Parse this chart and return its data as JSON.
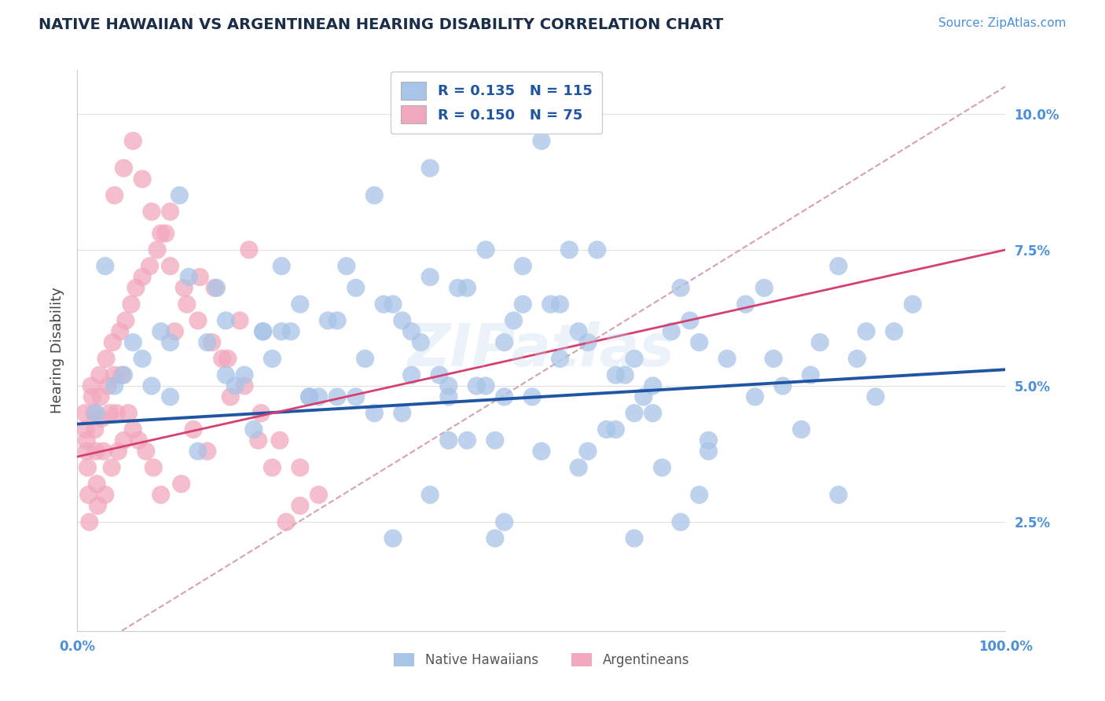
{
  "title": "NATIVE HAWAIIAN VS ARGENTINEAN HEARING DISABILITY CORRELATION CHART",
  "source": "Source: ZipAtlas.com",
  "ylabel": "Hearing Disability",
  "ytick_labels": [
    "2.5%",
    "5.0%",
    "7.5%",
    "10.0%"
  ],
  "ytick_values": [
    0.025,
    0.05,
    0.075,
    0.1
  ],
  "xlim": [
    0.0,
    1.0
  ],
  "ylim": [
    0.005,
    0.108
  ],
  "legend_R_blue": "0.135",
  "legend_N_blue": "115",
  "legend_R_pink": "0.150",
  "legend_N_pink": "75",
  "legend_label_blue": "Native Hawaiians",
  "legend_label_pink": "Argentineans",
  "watermark": "ZIPatlas",
  "blue_dot_color": "#a8c4e8",
  "pink_dot_color": "#f2a8bc",
  "blue_line_color": "#2055a4",
  "pink_line_color": "#d64070",
  "dashed_line_color": "#d8a0b0",
  "title_color": "#1a2e4a",
  "source_color": "#4a90d9",
  "axis_color": "#4a90d9",
  "legend_text_color": "#2055a4",
  "blue_scatter_x": [
    0.02,
    0.05,
    0.07,
    0.09,
    0.1,
    0.12,
    0.14,
    0.16,
    0.18,
    0.2,
    0.22,
    0.24,
    0.26,
    0.28,
    0.3,
    0.32,
    0.34,
    0.36,
    0.38,
    0.4,
    0.42,
    0.44,
    0.46,
    0.48,
    0.5,
    0.52,
    0.54,
    0.56,
    0.58,
    0.6,
    0.62,
    0.64,
    0.66,
    0.68,
    0.7,
    0.72,
    0.74,
    0.76,
    0.78,
    0.8,
    0.82,
    0.84,
    0.86,
    0.88,
    0.9,
    0.03,
    0.06,
    0.08,
    0.11,
    0.13,
    0.15,
    0.17,
    0.19,
    0.21,
    0.23,
    0.25,
    0.27,
    0.29,
    0.31,
    0.33,
    0.35,
    0.37,
    0.39,
    0.41,
    0.43,
    0.45,
    0.47,
    0.49,
    0.51,
    0.53,
    0.55,
    0.57,
    0.59,
    0.61,
    0.63,
    0.65,
    0.67,
    0.04,
    0.1,
    0.16,
    0.22,
    0.28,
    0.34,
    0.4,
    0.46,
    0.52,
    0.58,
    0.38,
    0.44,
    0.32,
    0.5,
    0.36,
    0.42,
    0.54,
    0.6,
    0.46,
    0.38,
    0.62,
    0.67,
    0.73,
    0.79,
    0.85,
    0.3,
    0.45,
    0.55,
    0.65,
    0.75,
    0.25,
    0.35,
    0.48,
    0.68,
    0.82,
    0.2,
    0.4,
    0.6
  ],
  "blue_scatter_y": [
    0.045,
    0.052,
    0.055,
    0.06,
    0.058,
    0.07,
    0.058,
    0.062,
    0.052,
    0.06,
    0.072,
    0.065,
    0.048,
    0.062,
    0.068,
    0.045,
    0.065,
    0.052,
    0.07,
    0.04,
    0.068,
    0.05,
    0.048,
    0.072,
    0.038,
    0.055,
    0.06,
    0.075,
    0.052,
    0.045,
    0.045,
    0.06,
    0.062,
    0.04,
    0.055,
    0.065,
    0.068,
    0.05,
    0.042,
    0.058,
    0.03,
    0.055,
    0.048,
    0.06,
    0.065,
    0.072,
    0.058,
    0.05,
    0.085,
    0.038,
    0.068,
    0.05,
    0.042,
    0.055,
    0.06,
    0.048,
    0.062,
    0.072,
    0.055,
    0.065,
    0.045,
    0.058,
    0.052,
    0.068,
    0.05,
    0.04,
    0.062,
    0.048,
    0.065,
    0.075,
    0.058,
    0.042,
    0.052,
    0.048,
    0.035,
    0.025,
    0.03,
    0.05,
    0.048,
    0.052,
    0.06,
    0.048,
    0.022,
    0.05,
    0.058,
    0.065,
    0.042,
    0.09,
    0.075,
    0.085,
    0.095,
    0.06,
    0.04,
    0.035,
    0.055,
    0.025,
    0.03,
    0.05,
    0.058,
    0.048,
    0.052,
    0.06,
    0.048,
    0.022,
    0.038,
    0.068,
    0.055,
    0.048,
    0.062,
    0.065,
    0.038,
    0.072,
    0.06,
    0.048,
    0.022
  ],
  "pink_scatter_x": [
    0.008,
    0.009,
    0.01,
    0.01,
    0.011,
    0.012,
    0.013,
    0.015,
    0.016,
    0.018,
    0.019,
    0.02,
    0.021,
    0.022,
    0.024,
    0.025,
    0.026,
    0.028,
    0.03,
    0.031,
    0.033,
    0.035,
    0.037,
    0.038,
    0.04,
    0.042,
    0.044,
    0.046,
    0.048,
    0.05,
    0.052,
    0.055,
    0.058,
    0.06,
    0.063,
    0.066,
    0.07,
    0.074,
    0.078,
    0.082,
    0.086,
    0.09,
    0.095,
    0.1,
    0.105,
    0.112,
    0.118,
    0.125,
    0.132,
    0.14,
    0.148,
    0.156,
    0.165,
    0.175,
    0.185,
    0.195,
    0.21,
    0.225,
    0.24,
    0.04,
    0.05,
    0.06,
    0.07,
    0.08,
    0.09,
    0.1,
    0.115,
    0.13,
    0.145,
    0.162,
    0.18,
    0.198,
    0.218,
    0.24,
    0.26
  ],
  "pink_scatter_y": [
    0.045,
    0.042,
    0.04,
    0.038,
    0.035,
    0.03,
    0.025,
    0.05,
    0.048,
    0.045,
    0.042,
    0.038,
    0.032,
    0.028,
    0.052,
    0.048,
    0.044,
    0.038,
    0.03,
    0.055,
    0.05,
    0.045,
    0.035,
    0.058,
    0.052,
    0.045,
    0.038,
    0.06,
    0.052,
    0.04,
    0.062,
    0.045,
    0.065,
    0.042,
    0.068,
    0.04,
    0.07,
    0.038,
    0.072,
    0.035,
    0.075,
    0.03,
    0.078,
    0.082,
    0.06,
    0.032,
    0.065,
    0.042,
    0.07,
    0.038,
    0.068,
    0.055,
    0.048,
    0.062,
    0.075,
    0.04,
    0.035,
    0.025,
    0.028,
    0.085,
    0.09,
    0.095,
    0.088,
    0.082,
    0.078,
    0.072,
    0.068,
    0.062,
    0.058,
    0.055,
    0.05,
    0.045,
    0.04,
    0.035,
    0.03
  ],
  "blue_trend": [
    0.043,
    0.053
  ],
  "pink_trend": [
    0.037,
    0.075
  ],
  "dashed_trend": [
    0.0,
    0.105
  ]
}
